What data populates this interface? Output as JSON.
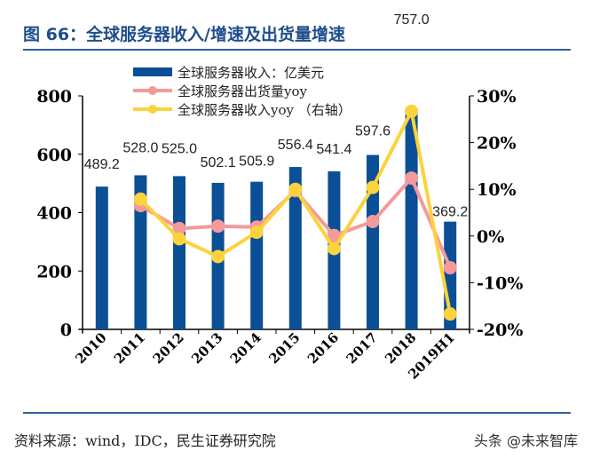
{
  "title": "图 66：全球服务器收入/增速及出货量增速",
  "source": "资料来源：wind，IDC，民生证券研究院",
  "watermark": "头条 @未来智库",
  "chart_data": {
    "type": "bar+line",
    "categories": [
      "2010",
      "2011",
      "2012",
      "2013",
      "2014",
      "2015",
      "2016",
      "2017",
      "2018",
      "2019H1"
    ],
    "left_axis": {
      "ylim": [
        0,
        800
      ],
      "ticks": [
        "0",
        "200",
        "400",
        "600",
        "800"
      ]
    },
    "right_axis": {
      "ylim": [
        -20,
        30
      ],
      "ticks": [
        "-20%",
        "-10%",
        "0%",
        "10%",
        "20%",
        "30%"
      ]
    },
    "legend_position": "top-left",
    "series": [
      {
        "name": "全球服务器收入：亿美元",
        "type": "bar",
        "axis": "left",
        "color": "#0b4f96",
        "values": [
          489.2,
          528.0,
          525.0,
          502.1,
          505.9,
          556.4,
          541.4,
          597.6,
          757.0,
          369.2
        ],
        "labels": [
          "489.2",
          "528.0",
          "525.0",
          "502.1",
          "505.9",
          "556.4",
          "541.4",
          "597.6",
          "757.0",
          "369.2"
        ]
      },
      {
        "name": "全球服务器出货量yoy",
        "type": "line",
        "axis": "right",
        "color": "#f59a9a",
        "values": [
          null,
          6.5,
          1.6,
          2.1,
          1.9,
          9.7,
          0.1,
          3.1,
          12.4,
          -6.8
        ]
      },
      {
        "name": "全球服务器收入yoy （右轴）",
        "type": "line",
        "axis": "right",
        "color": "#fcd23d",
        "values": [
          null,
          7.9,
          -0.6,
          -4.4,
          0.8,
          10.0,
          -2.7,
          10.4,
          26.7,
          -16.7
        ]
      }
    ]
  }
}
